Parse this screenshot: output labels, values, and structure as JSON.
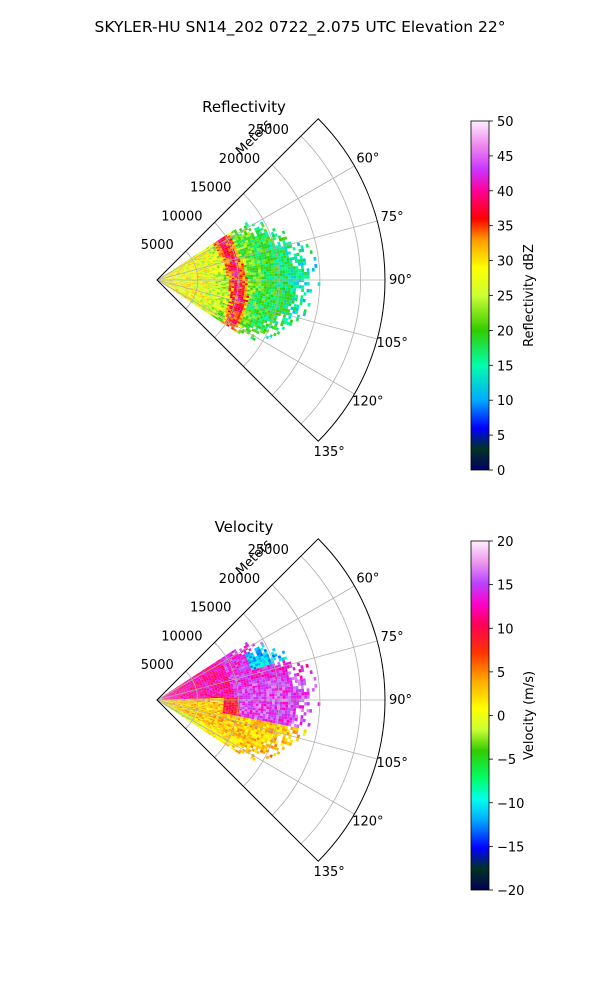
{
  "suptitle": "SKYLER-HU  SN14_202  0722_2.075 UTC Elevation 22°",
  "chart_data": [
    {
      "type": "heatmap",
      "title": "Reflectivity",
      "range_label": "Meters",
      "range_ticks": [
        "5000",
        "10000",
        "15000",
        "20000",
        "25000"
      ],
      "azimuth_ticks": [
        "60°",
        "75°",
        "90°",
        "105°",
        "120°",
        "135°"
      ],
      "azimuth_extent": [
        45,
        135
      ],
      "range_max": 28000,
      "colorbar": {
        "label": "Reflectivity dBZ",
        "range": [
          0,
          50
        ],
        "ticks": [
          "0",
          "5",
          "10",
          "15",
          "20",
          "25",
          "30",
          "35",
          "40",
          "45",
          "50"
        ]
      },
      "field": {
        "echo_azimuth": [
          57,
          122
        ],
        "echo_range": [
          0,
          18500
        ],
        "bright_band_range": [
          9000,
          10500
        ],
        "bright_band_value": 38,
        "near_range_value": 27,
        "far_range_value": 15
      }
    },
    {
      "type": "heatmap",
      "title": "Velocity",
      "range_label": "Meters",
      "range_ticks": [
        "5000",
        "10000",
        "15000",
        "20000",
        "25000"
      ],
      "azimuth_ticks": [
        "60°",
        "75°",
        "90°",
        "105°",
        "120°",
        "135°"
      ],
      "azimuth_extent": [
        45,
        135
      ],
      "range_max": 28000,
      "colorbar": {
        "label": "Velocity (m/s)",
        "range": [
          -20,
          20
        ],
        "ticks": [
          "−20",
          "−15",
          "−10",
          "−5",
          "0",
          "5",
          "10",
          "15",
          "20"
        ]
      },
      "field": {
        "echo_azimuth": [
          57,
          122
        ],
        "echo_range": [
          0,
          18500
        ],
        "north_sector_value": 12,
        "south_sector_value": 3,
        "east_far_value": 15,
        "cyan_patch_value": -11
      }
    }
  ]
}
